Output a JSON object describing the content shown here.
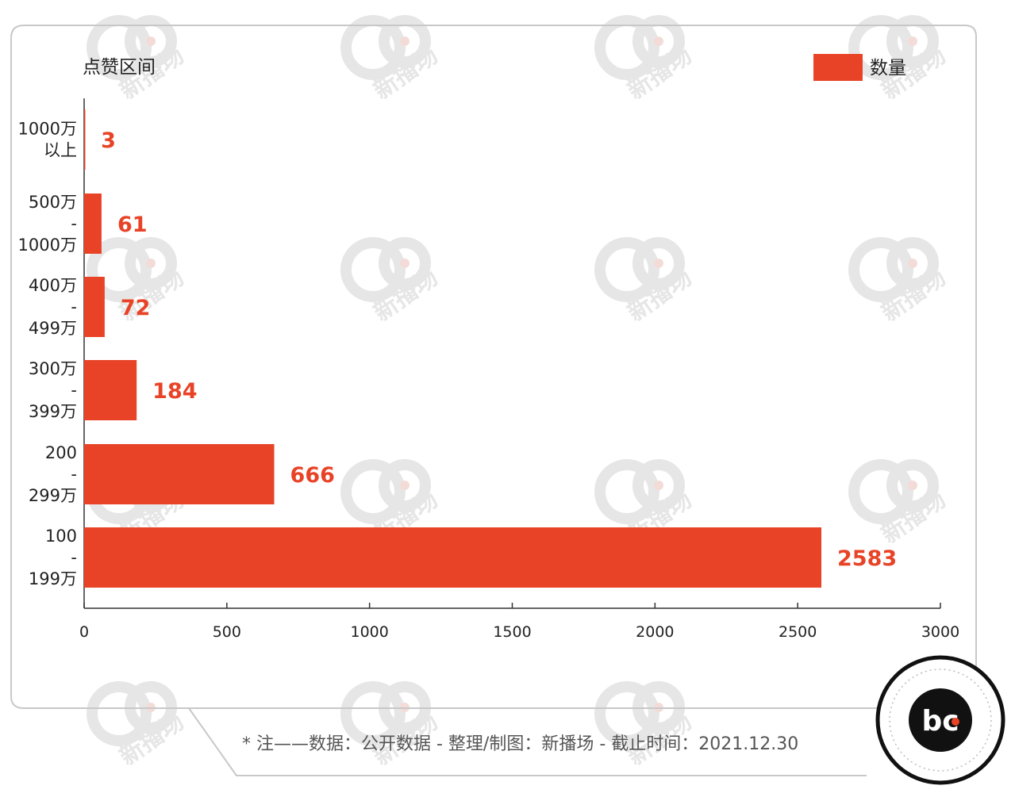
{
  "chart_data": {
    "type": "bar",
    "orientation": "horizontal",
    "ylabel": "点赞区间",
    "categories": [
      [
        "1000万",
        "以上"
      ],
      [
        "500万",
        "-",
        "1000万"
      ],
      [
        "400万",
        "-",
        "499万"
      ],
      [
        "300万",
        "-",
        "399万"
      ],
      [
        "200",
        "-",
        "299万"
      ],
      [
        "100",
        "-",
        "199万"
      ]
    ],
    "series": [
      {
        "name": "数量",
        "values": [
          3,
          61,
          72,
          184,
          666,
          2583
        ]
      }
    ],
    "value_labels": [
      "3",
      "61",
      "72",
      "184",
      "666",
      "2583"
    ],
    "xlim": [
      0,
      3000
    ],
    "xticks": [
      "0",
      "500",
      "1000",
      "1500",
      "2000",
      "2500",
      "3000"
    ],
    "legend_position": "top-right",
    "grid": false
  },
  "footnote": "* 注——数据：公开数据  -  整理/制图：新播场  -  截止时间：2021.12.30",
  "watermark_text": "新播场",
  "colors": {
    "bar": "#e84327",
    "value_label": "#e84327",
    "panel_border": "#c8c8c8",
    "axis": "#333333",
    "watermark": "#e6e6e6",
    "logo_bg": "#111111",
    "logo_dot": "#e84327"
  },
  "logo": {
    "text": "bc",
    "name": "bc-logo-icon"
  }
}
